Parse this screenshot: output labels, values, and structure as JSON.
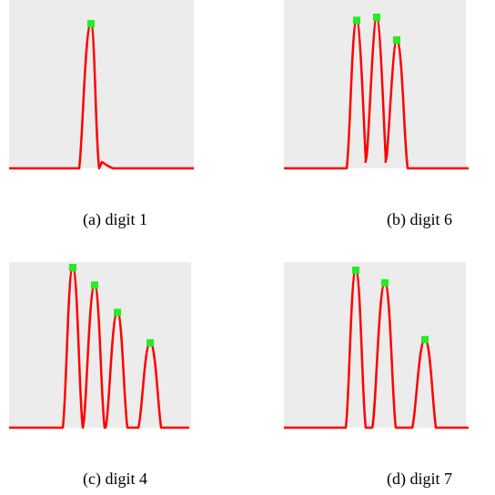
{
  "colors": {
    "plot_background": "#ececec",
    "curve": "#ff0000",
    "peak_marker": "#22ee22"
  },
  "figure": {
    "panels": [
      {
        "caption": "(a) digit 1"
      },
      {
        "caption": "(b) digit 6"
      },
      {
        "caption": "(c) digit 4"
      },
      {
        "caption": "(d) digit 7"
      }
    ]
  },
  "chart_data": [
    {
      "type": "line",
      "series": [
        {
          "peaks": [
            1.0
          ]
        }
      ]
    },
    {
      "type": "line",
      "series": [
        {
          "peaks": [
            0.98,
            1.0,
            0.85
          ]
        }
      ]
    },
    {
      "type": "line",
      "series": [
        {
          "peaks": [
            1.0,
            0.89,
            0.72,
            0.53
          ]
        }
      ]
    },
    {
      "type": "line",
      "series": [
        {
          "peaks": [
            1.0,
            0.92,
            0.56
          ]
        }
      ]
    }
  ]
}
